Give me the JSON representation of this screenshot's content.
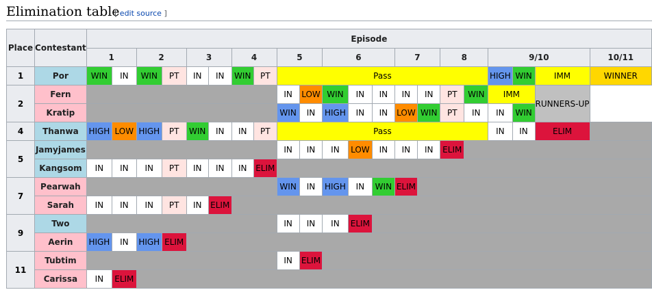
{
  "section": {
    "title": "Elimination table",
    "edit_open": "[ ",
    "edit_link": "edit source",
    "edit_close": " ]"
  },
  "table": {
    "headers": {
      "place": "Place",
      "contestant": "Contestant",
      "episode": "Episode",
      "episodes": [
        "1",
        "2",
        "3",
        "4",
        "5",
        "6",
        "7",
        "8",
        "9/10",
        "10/11"
      ]
    },
    "rows": [
      {
        "place": "1",
        "name": "Por",
        "color": "#add8e6",
        "cells": [
          "WIN",
          "IN",
          "WIN",
          "PT",
          "IN",
          "IN",
          "WIN",
          "PT",
          "Pass",
          "HIGH",
          "WIN",
          "IMM",
          "WINNER"
        ]
      },
      {
        "place": "2",
        "name": "Fern",
        "color": "#ffc0cb",
        "cells": [
          "IN",
          "LOW",
          "WIN",
          "IN",
          "IN",
          "IN",
          "IN",
          "PT",
          "WIN",
          "IMM",
          "RUNNERS-UP"
        ]
      },
      {
        "place": "",
        "name": "Kratip",
        "color": "#ffc0cb",
        "cells": [
          "WIN",
          "IN",
          "HIGH",
          "IN",
          "IN",
          "LOW",
          "WIN",
          "PT",
          "IN",
          "IN",
          "WIN"
        ]
      },
      {
        "place": "4",
        "name": "Thanwa",
        "color": "#add8e6",
        "cells": [
          "HIGH",
          "LOW",
          "HIGH",
          "PT",
          "WIN",
          "IN",
          "IN",
          "PT",
          "Pass",
          "IN",
          "IN",
          "ELIM"
        ]
      },
      {
        "place": "5",
        "name": "Jamyjames",
        "color": "#add8e6",
        "cells": [
          "IN",
          "IN",
          "IN",
          "LOW",
          "IN",
          "IN",
          "IN",
          "ELIM"
        ]
      },
      {
        "place": "",
        "name": "Kangsom",
        "color": "#add8e6",
        "cells": [
          "IN",
          "IN",
          "IN",
          "PT",
          "IN",
          "IN",
          "IN",
          "ELIM"
        ]
      },
      {
        "place": "7",
        "name": "Pearwah",
        "color": "#ffc0cb",
        "cells": [
          "WIN",
          "IN",
          "HIGH",
          "IN",
          "WIN",
          "ELIM"
        ]
      },
      {
        "place": "",
        "name": "Sarah",
        "color": "#ffc0cb",
        "cells": [
          "IN",
          "IN",
          "IN",
          "PT",
          "IN",
          "ELIM"
        ]
      },
      {
        "place": "9",
        "name": "Two",
        "color": "#add8e6",
        "cells": [
          "IN",
          "IN",
          "IN",
          "ELIM"
        ]
      },
      {
        "place": "",
        "name": "Aerin",
        "color": "#ffc0cb",
        "cells": [
          "HIGH",
          "IN",
          "HIGH",
          "ELIM"
        ]
      },
      {
        "place": "11",
        "name": "Tubtim",
        "color": "#ffc0cb",
        "cells": [
          "IN",
          "ELIM"
        ]
      },
      {
        "place": "",
        "name": "Carissa",
        "color": "#ffc0cb",
        "cells": [
          "IN",
          "ELIM"
        ]
      }
    ]
  },
  "colors": {
    "WIN": "#32cd32",
    "IN": "#ffffff",
    "PT": "#ffe4e1",
    "LOW": "#ff8c00",
    "HIGH": "#6495ed",
    "ELIM": "#dc143c",
    "Pass": "#ffff00",
    "IMM": "#ffff00",
    "WINNER": "#ffd700",
    "RUNNERS-UP": "#c0c0c0",
    "eliminated": "#a9a9a9",
    "header": "#eaecf0",
    "male": "#add8e6",
    "female": "#ffc0cb"
  }
}
